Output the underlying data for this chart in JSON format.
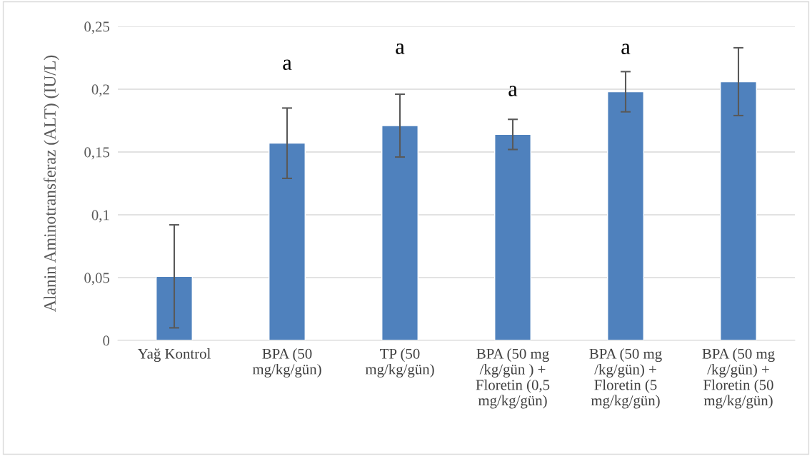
{
  "chart_data": {
    "type": "bar",
    "ylabel": "Alanin Aminotransferaz (ALT) (IU/L)",
    "categories": [
      "Yağ Kontrol",
      "BPA (50\nmg/kg/gün)",
      "TP (50\nmg/kg/gün)",
      "BPA (50 mg\n/kg/gün ) +\nFloretin (0,5\nmg/kg/gün)",
      "BPA (50 mg\n/kg/gün) +\nFloretin (5\nmg/kg/gün)",
      "BPA (50 mg\n/kg/gün) +\nFloretin (50\nmg/kg/gün)"
    ],
    "values": [
      0.051,
      0.157,
      0.171,
      0.164,
      0.198,
      0.206
    ],
    "errors": [
      0.041,
      0.028,
      0.025,
      0.012,
      0.016,
      0.027
    ],
    "color": "#4f81bd",
    "ylim": [
      0,
      0.25
    ],
    "yticks": [
      {
        "value": 0,
        "label": "0"
      },
      {
        "value": 0.05,
        "label": "0,05"
      },
      {
        "value": 0.1,
        "label": "0,1"
      },
      {
        "value": 0.15,
        "label": "0,15"
      },
      {
        "value": 0.2,
        "label": "0,2"
      },
      {
        "value": 0.25,
        "label": "0,25"
      }
    ],
    "grid": "y",
    "annotations": [
      "a",
      "a",
      "a",
      "a"
    ]
  }
}
